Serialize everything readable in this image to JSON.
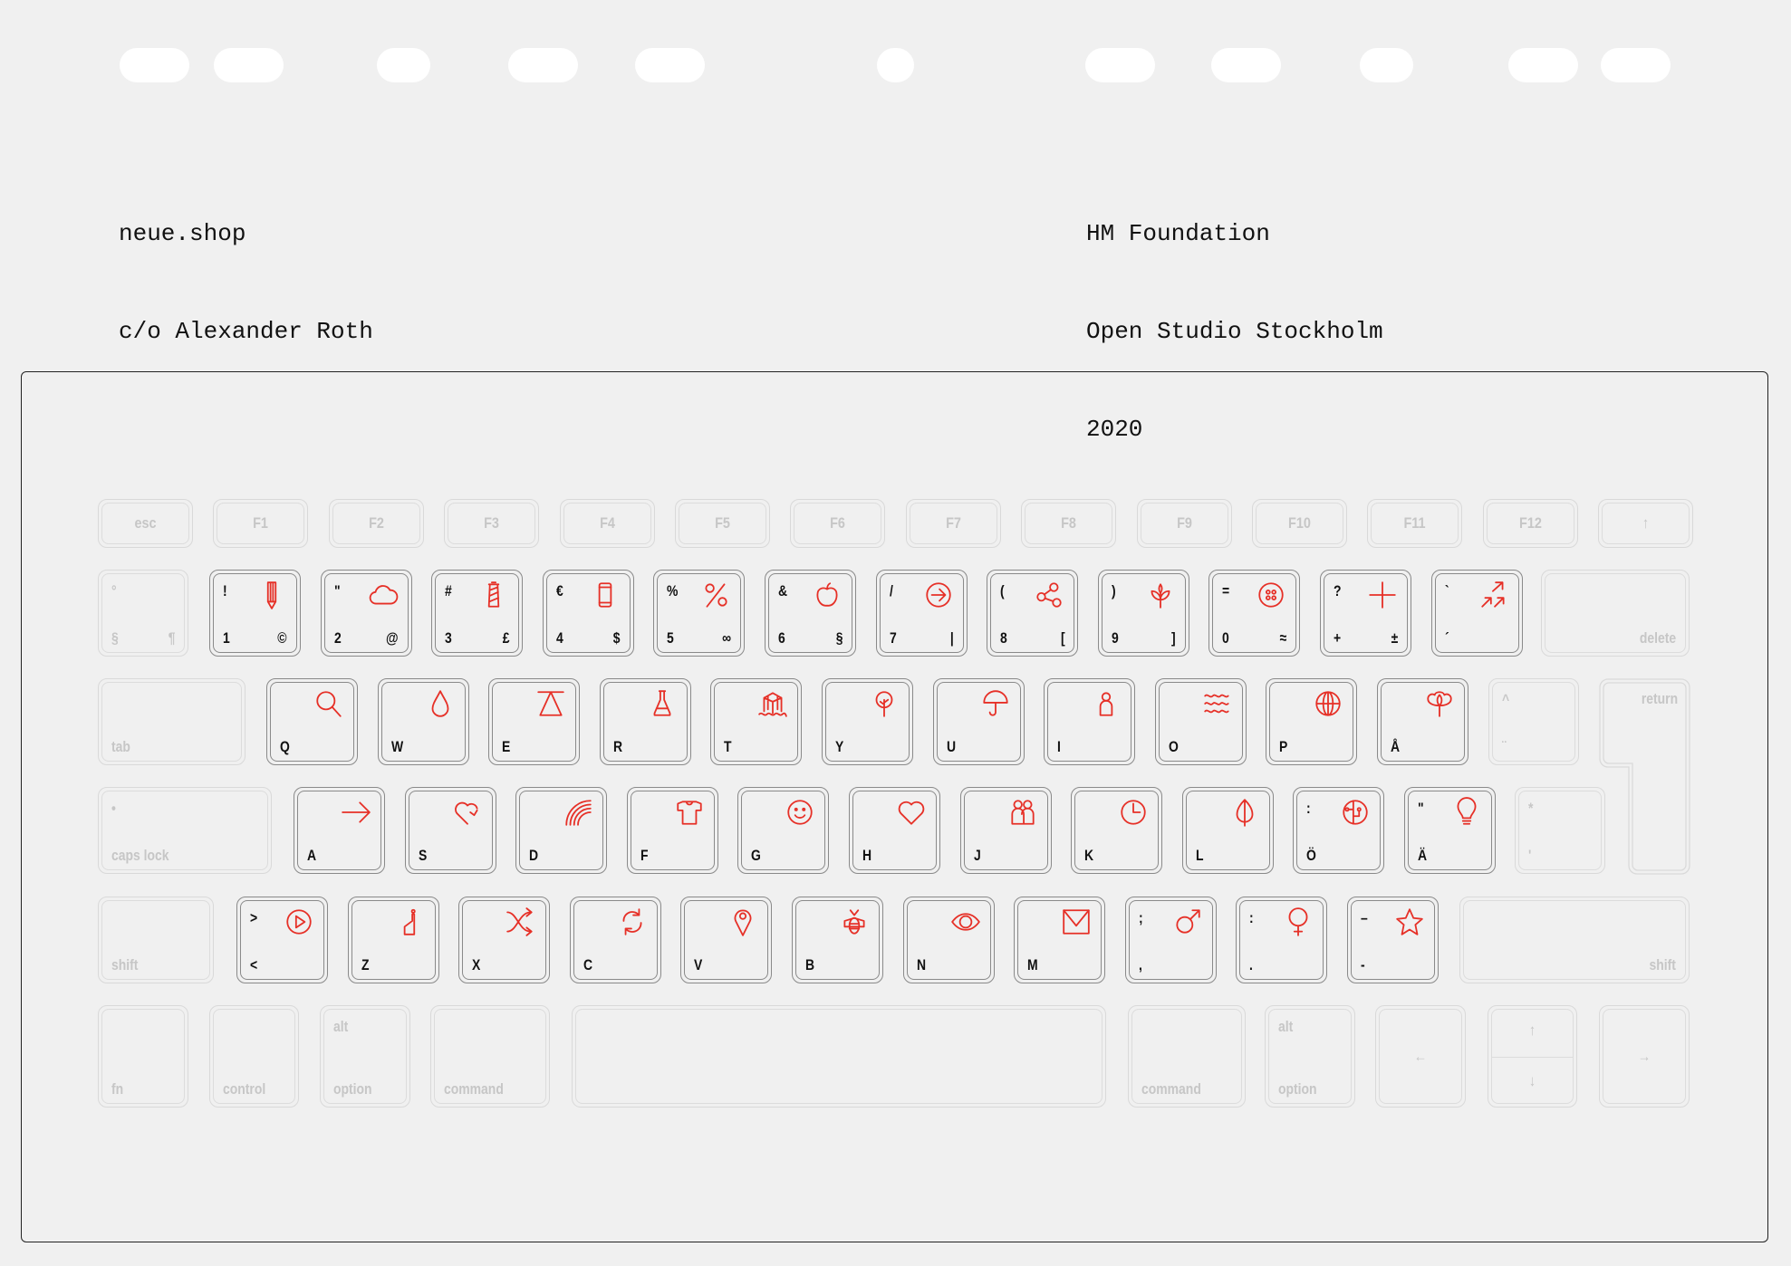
{
  "colors": {
    "background": "#f0f0f0",
    "accent": "#e63027",
    "legend": "#111111",
    "inactive_legend": "#c6c6c6",
    "pill": "#ffffff"
  },
  "sender": {
    "line1": "neue.shop",
    "line2": "c/o Alexander Roth"
  },
  "recipient": {
    "line1": "HM Foundation",
    "line2": "Open Studio Stockholm",
    "line3": "2020"
  },
  "keyboard": {
    "function_row": [
      "esc",
      "F1",
      "F2",
      "F3",
      "F4",
      "F5",
      "F6",
      "F7",
      "F8",
      "F9",
      "F10",
      "F11",
      "F12",
      "↑"
    ],
    "number_row": {
      "lead": {
        "top": "°",
        "bottom": "§",
        "bottom_right": "¶"
      },
      "keys": [
        {
          "top": "!",
          "bottom": "1",
          "bottom_right": "©",
          "icon": "pencil-icon"
        },
        {
          "top": "\"",
          "bottom": "2",
          "bottom_right": "@",
          "icon": "cloud-icon"
        },
        {
          "top": "#",
          "bottom": "3",
          "bottom_right": "£",
          "icon": "thread-spool-icon"
        },
        {
          "top": "€",
          "bottom": "4",
          "bottom_right": "$",
          "icon": "smartphone-icon"
        },
        {
          "top": "%",
          "bottom": "5",
          "bottom_right": "∞",
          "icon": "percent-icon"
        },
        {
          "top": "&",
          "bottom": "6",
          "bottom_right": "§",
          "icon": "apple-icon"
        },
        {
          "top": "/",
          "bottom": "7",
          "bottom_right": "|",
          "icon": "arrow-circle-right-icon"
        },
        {
          "top": "(",
          "bottom": "8",
          "bottom_right": "[",
          "icon": "share-nodes-icon"
        },
        {
          "top": ")",
          "bottom": "9",
          "bottom_right": "]",
          "icon": "sprout-icon"
        },
        {
          "top": "=",
          "bottom": "0",
          "bottom_right": "≈",
          "icon": "button-icon"
        },
        {
          "top": "?",
          "bottom": "+",
          "bottom_right": "±",
          "icon": "plus-icon"
        },
        {
          "top": "`",
          "bottom": "´",
          "bottom_right": "",
          "icon": "arrows-up-right-icon"
        }
      ],
      "delete": "delete"
    },
    "qwerty_row": {
      "tab": "tab",
      "keys": [
        {
          "bottom": "Q",
          "icon": "search-icon"
        },
        {
          "bottom": "W",
          "icon": "water-drop-icon"
        },
        {
          "bottom": "E",
          "icon": "triangle-scale-icon"
        },
        {
          "bottom": "R",
          "icon": "flask-icon"
        },
        {
          "bottom": "T",
          "icon": "box-waves-icon"
        },
        {
          "bottom": "Y",
          "icon": "tree-icon"
        },
        {
          "bottom": "U",
          "icon": "umbrella-icon"
        },
        {
          "bottom": "I",
          "icon": "person-icon"
        },
        {
          "bottom": "O",
          "icon": "waves-icon"
        },
        {
          "bottom": "P",
          "icon": "globe-icon"
        },
        {
          "bottom": "Å",
          "icon": "cotton-flower-icon"
        }
      ],
      "trail": {
        "top": "^",
        "bottom": "¨"
      },
      "return": "return"
    },
    "home_row": {
      "caps_top": "•",
      "caps": "caps lock",
      "keys": [
        {
          "top": "",
          "bottom": "A",
          "icon": "arrow-right-icon"
        },
        {
          "top": "",
          "bottom": "S",
          "icon": "heart-refresh-icon"
        },
        {
          "top": "",
          "bottom": "D",
          "icon": "rainbow-icon"
        },
        {
          "top": "",
          "bottom": "F",
          "icon": "tshirt-icon"
        },
        {
          "top": "",
          "bottom": "G",
          "icon": "smiley-icon"
        },
        {
          "top": "",
          "bottom": "H",
          "icon": "heart-icon"
        },
        {
          "top": "",
          "bottom": "J",
          "icon": "people-icon"
        },
        {
          "top": "",
          "bottom": "K",
          "icon": "clock-icon"
        },
        {
          "top": "",
          "bottom": "L",
          "icon": "leaf-icon"
        },
        {
          "top": ":",
          "bottom": "Ö",
          "icon": "circuit-icon"
        },
        {
          "top": "\"",
          "bottom": "Ä",
          "icon": "lightbulb-icon"
        }
      ],
      "trail": {
        "top": "*",
        "bottom": "'"
      }
    },
    "bottom_row": {
      "shift_left": "shift",
      "keys": [
        {
          "top": ">",
          "bottom": "<",
          "icon": "play-circle-icon"
        },
        {
          "top": "",
          "bottom": "Z",
          "icon": "bottle-icon"
        },
        {
          "top": "",
          "bottom": "X",
          "icon": "shuffle-icon"
        },
        {
          "top": "",
          "bottom": "C",
          "icon": "refresh-icon"
        },
        {
          "top": "",
          "bottom": "V",
          "icon": "map-pin-icon"
        },
        {
          "top": "",
          "bottom": "B",
          "icon": "bee-icon"
        },
        {
          "top": "",
          "bottom": "N",
          "icon": "eye-icon"
        },
        {
          "top": "",
          "bottom": "M",
          "icon": "envelope-icon"
        },
        {
          "top": ";",
          "bottom": ",",
          "icon": "male-symbol-icon"
        },
        {
          "top": ":",
          "bottom": ".",
          "icon": "female-symbol-icon"
        },
        {
          "top": "–",
          "bottom": "-",
          "icon": "star-icon"
        }
      ],
      "shift_right": "shift"
    },
    "modifier_row": {
      "fn": "fn",
      "control": "control",
      "alt_left": "alt",
      "option_left": "option",
      "command_left": "command",
      "command_right": "command",
      "alt_right": "alt",
      "option_right": "option",
      "arrow_left": "←",
      "arrow_up": "↑",
      "arrow_down": "↓",
      "arrow_right": "→"
    }
  }
}
